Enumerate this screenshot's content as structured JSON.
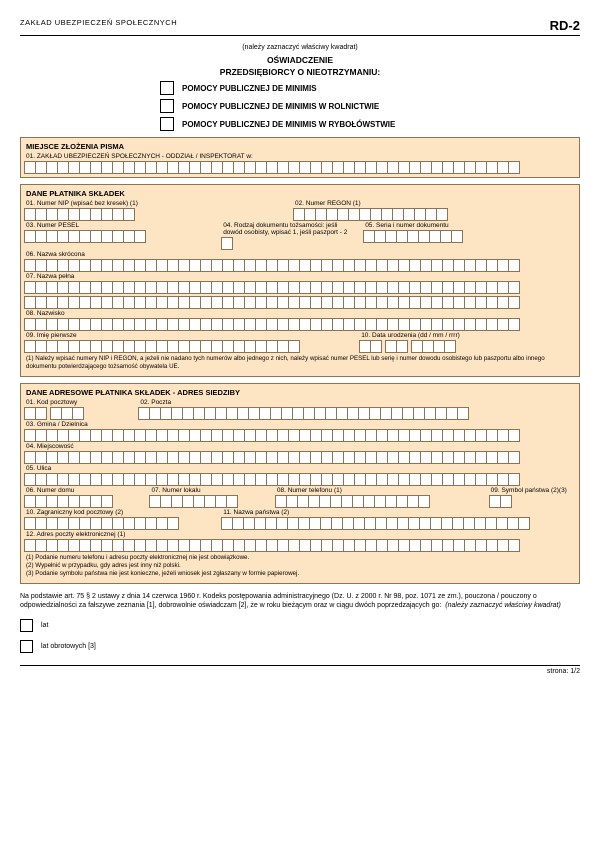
{
  "header": {
    "org": "ZAKŁAD UBEZPIECZEŃ SPOŁECZNYCH",
    "code": "RD-2"
  },
  "instr": "(należy zaznaczyć właściwy kwadrat)",
  "title1": "OŚWIADCZENIE",
  "title2": "PRZEDSIĘBIORCY O NIEOTRZYMANIU:",
  "opts": [
    "POMOCY PUBLICZNEJ DE MINIMIS",
    "POMOCY PUBLICZNEJ DE MINIMIS W ROLNICTWIE",
    "POMOCY PUBLICZNEJ DE MINIMIS W RYBOŁÓWSTWIE"
  ],
  "s1": {
    "title": "MIEJSCE ZŁOŻENIA PISMA",
    "f1": "01. ZAKŁAD UBEZPIECZEŃ SPOŁECZNYCH - ODDZIAŁ / INSPEKTORAT w:"
  },
  "s2": {
    "title": "DANE PŁATNIKA SKŁADEK",
    "f01": "01. Numer NIP (wpisać bez kresek) (1)",
    "f02": "02. Numer REGON (1)",
    "f03": "03. Numer PESEL",
    "f04": "04. Rodzaj dokumentu tożsamości: jeśli dowód osobisty, wpisać 1, jeśli paszport - 2",
    "f05": "05. Seria i numer dokumentu",
    "f06": "06. Nazwa skrócona",
    "f07": "07. Nazwa pełna",
    "f08": "08. Nazwisko",
    "f09": "09. Imię pierwsze",
    "f10": "10. Data urodzenia (dd / mm / rrrr)",
    "note": "(1) Należy wpisać numery NIP i REGON, a jeżeli nie nadano tych numerów albo jednego z nich, należy wpisać numer PESEL lub serię i numer dowodu osobistego lub paszportu albo innego dokumentu potwierdzającego tożsamość obywatela UE."
  },
  "s3": {
    "title": "DANE ADRESOWE PŁATNIKA SKŁADEK - ADRES SIEDZIBY",
    "f01": "01. Kod pocztowy",
    "f02": "02. Poczta",
    "f03": "03. Gmina / Dzielnica",
    "f04": "04. Miejscowość",
    "f05": "05. Ulica",
    "f06": "06. Numer domu",
    "f07": "07. Numer lokalu",
    "f08": "08. Numer telefonu (1)",
    "f09": "09. Symbol państwa (2)(3)",
    "f10": "10. Zagraniczny kod pocztowy (2)",
    "f11": "11. Nazwa państwa (2)",
    "f12": "12. Adres poczty elektronicznej (1)",
    "note": "(1) Podanie numeru telefonu i adresu poczty elektronicznej nie jest obowiązkowe.\n(2) Wypełnić w przypadku, gdy adres jest inny niż polski.\n(3) Podanie symbolu państwa nie jest konieczne, jeżeli wniosek jest zgłaszany w formie papierowej."
  },
  "legal": "Na podstawie art. 75 § 2 ustawy z dnia 14 czerwca 1960 r. Kodeks postępowania administracyjnego (Dz. U. z 2000 r. Nr 98, poz. 1071 ze zm.), pouczona / pouczony o odpowiedzialności za fałszywe zeznania [1], dobrowolnie oświadczam [2], że w roku bieżącym oraz w ciągu dwóch poprzedzających go:",
  "legal_instr": "(należy zaznaczyć właściwy kwadrat)",
  "b1": "lat",
  "b2": "lat obrotowych [3]",
  "footer": "strona: 1/2",
  "colors": {
    "section_bg": "#fde5c4",
    "border": "#8b7355"
  }
}
